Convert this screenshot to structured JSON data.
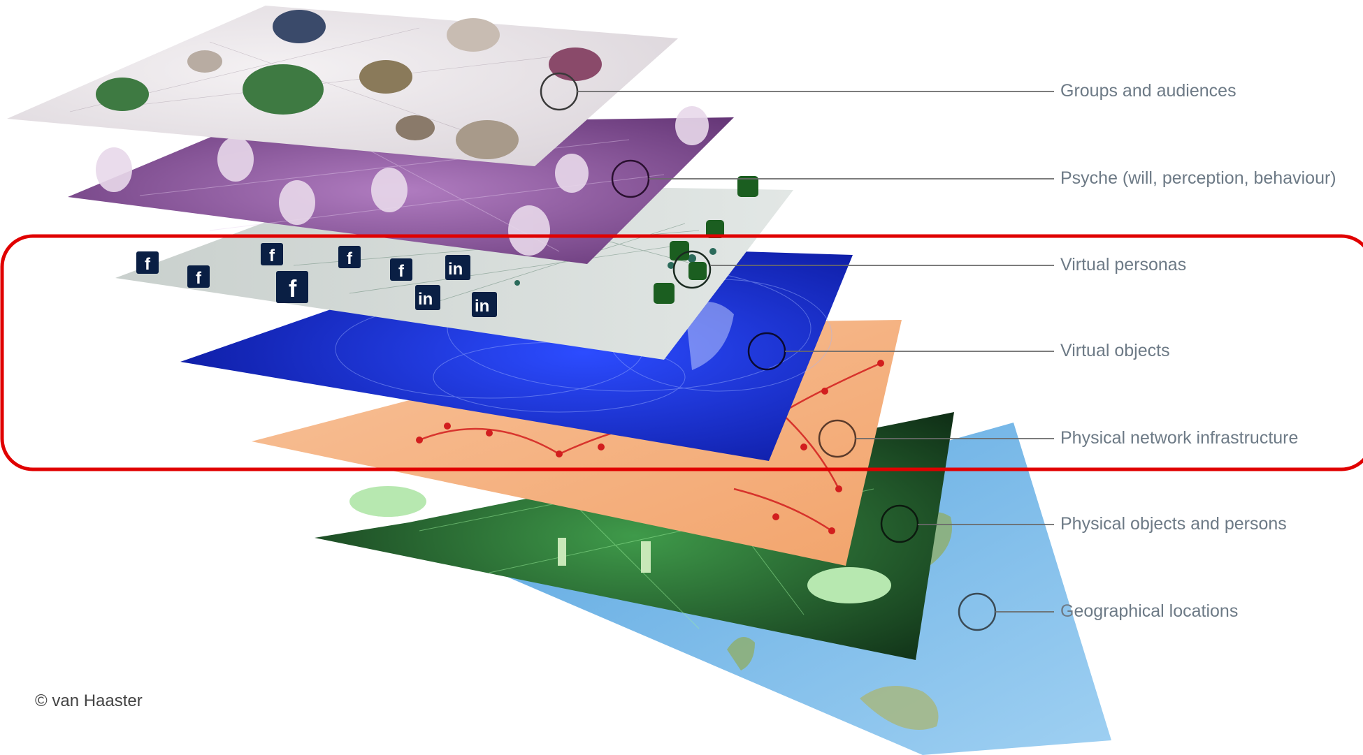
{
  "layers": [
    {
      "label": "Groups and audiences",
      "color": "#e8e4ea",
      "accent": "#7a4a6a"
    },
    {
      "label": "Psyche  (will, perception, behaviour)",
      "color": "#7e4c90",
      "accent": "#d8b8e0"
    },
    {
      "label": "Virtual personas",
      "color": "#d4dad8",
      "accent": "#1b5e20"
    },
    {
      "label": "Virtual objects",
      "color": "#0a22c8",
      "accent": "#9fb4ff"
    },
    {
      "label": "Physical network infrastructure",
      "color": "#f4b07e",
      "accent": "#d21e1e"
    },
    {
      "label": "Physical objects and persons",
      "color": "#1f5a2a",
      "accent": "#a6f0a6"
    },
    {
      "label": "Geographical locations",
      "color": "#78b8e8",
      "accent": "#7a9a5a"
    }
  ],
  "highlight": {
    "color": "#e00000",
    "from_layer": "Virtual personas",
    "to_layer": "Physical network infrastructure"
  },
  "social_icons": {
    "facebook": "f",
    "linkedin": "in"
  },
  "copyright": "© van Haaster"
}
